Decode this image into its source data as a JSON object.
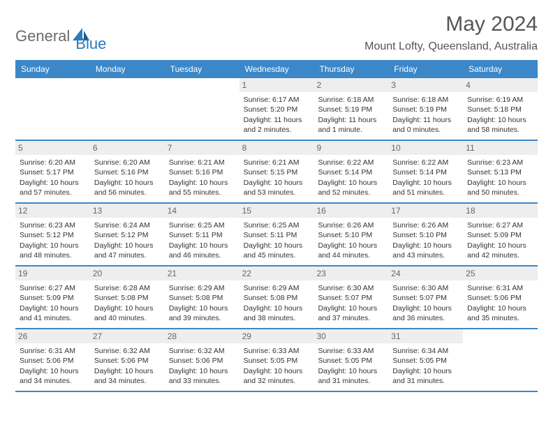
{
  "logo": {
    "part1": "General",
    "part2": "Blue"
  },
  "title": "May 2024",
  "location": "Mount Lofty, Queensland, Australia",
  "colors": {
    "header_bg": "#3b87c8",
    "header_text": "#ffffff",
    "daynum_bg": "#eeeeee",
    "border": "#3b87c8"
  },
  "day_names": [
    "Sunday",
    "Monday",
    "Tuesday",
    "Wednesday",
    "Thursday",
    "Friday",
    "Saturday"
  ],
  "weeks": [
    [
      {
        "n": "",
        "sr": "",
        "ss": "",
        "dl": ""
      },
      {
        "n": "",
        "sr": "",
        "ss": "",
        "dl": ""
      },
      {
        "n": "",
        "sr": "",
        "ss": "",
        "dl": ""
      },
      {
        "n": "1",
        "sr": "Sunrise: 6:17 AM",
        "ss": "Sunset: 5:20 PM",
        "dl": "Daylight: 11 hours and 2 minutes."
      },
      {
        "n": "2",
        "sr": "Sunrise: 6:18 AM",
        "ss": "Sunset: 5:19 PM",
        "dl": "Daylight: 11 hours and 1 minute."
      },
      {
        "n": "3",
        "sr": "Sunrise: 6:18 AM",
        "ss": "Sunset: 5:19 PM",
        "dl": "Daylight: 11 hours and 0 minutes."
      },
      {
        "n": "4",
        "sr": "Sunrise: 6:19 AM",
        "ss": "Sunset: 5:18 PM",
        "dl": "Daylight: 10 hours and 58 minutes."
      }
    ],
    [
      {
        "n": "5",
        "sr": "Sunrise: 6:20 AM",
        "ss": "Sunset: 5:17 PM",
        "dl": "Daylight: 10 hours and 57 minutes."
      },
      {
        "n": "6",
        "sr": "Sunrise: 6:20 AM",
        "ss": "Sunset: 5:16 PM",
        "dl": "Daylight: 10 hours and 56 minutes."
      },
      {
        "n": "7",
        "sr": "Sunrise: 6:21 AM",
        "ss": "Sunset: 5:16 PM",
        "dl": "Daylight: 10 hours and 55 minutes."
      },
      {
        "n": "8",
        "sr": "Sunrise: 6:21 AM",
        "ss": "Sunset: 5:15 PM",
        "dl": "Daylight: 10 hours and 53 minutes."
      },
      {
        "n": "9",
        "sr": "Sunrise: 6:22 AM",
        "ss": "Sunset: 5:14 PM",
        "dl": "Daylight: 10 hours and 52 minutes."
      },
      {
        "n": "10",
        "sr": "Sunrise: 6:22 AM",
        "ss": "Sunset: 5:14 PM",
        "dl": "Daylight: 10 hours and 51 minutes."
      },
      {
        "n": "11",
        "sr": "Sunrise: 6:23 AM",
        "ss": "Sunset: 5:13 PM",
        "dl": "Daylight: 10 hours and 50 minutes."
      }
    ],
    [
      {
        "n": "12",
        "sr": "Sunrise: 6:23 AM",
        "ss": "Sunset: 5:12 PM",
        "dl": "Daylight: 10 hours and 48 minutes."
      },
      {
        "n": "13",
        "sr": "Sunrise: 6:24 AM",
        "ss": "Sunset: 5:12 PM",
        "dl": "Daylight: 10 hours and 47 minutes."
      },
      {
        "n": "14",
        "sr": "Sunrise: 6:25 AM",
        "ss": "Sunset: 5:11 PM",
        "dl": "Daylight: 10 hours and 46 minutes."
      },
      {
        "n": "15",
        "sr": "Sunrise: 6:25 AM",
        "ss": "Sunset: 5:11 PM",
        "dl": "Daylight: 10 hours and 45 minutes."
      },
      {
        "n": "16",
        "sr": "Sunrise: 6:26 AM",
        "ss": "Sunset: 5:10 PM",
        "dl": "Daylight: 10 hours and 44 minutes."
      },
      {
        "n": "17",
        "sr": "Sunrise: 6:26 AM",
        "ss": "Sunset: 5:10 PM",
        "dl": "Daylight: 10 hours and 43 minutes."
      },
      {
        "n": "18",
        "sr": "Sunrise: 6:27 AM",
        "ss": "Sunset: 5:09 PM",
        "dl": "Daylight: 10 hours and 42 minutes."
      }
    ],
    [
      {
        "n": "19",
        "sr": "Sunrise: 6:27 AM",
        "ss": "Sunset: 5:09 PM",
        "dl": "Daylight: 10 hours and 41 minutes."
      },
      {
        "n": "20",
        "sr": "Sunrise: 6:28 AM",
        "ss": "Sunset: 5:08 PM",
        "dl": "Daylight: 10 hours and 40 minutes."
      },
      {
        "n": "21",
        "sr": "Sunrise: 6:29 AM",
        "ss": "Sunset: 5:08 PM",
        "dl": "Daylight: 10 hours and 39 minutes."
      },
      {
        "n": "22",
        "sr": "Sunrise: 6:29 AM",
        "ss": "Sunset: 5:08 PM",
        "dl": "Daylight: 10 hours and 38 minutes."
      },
      {
        "n": "23",
        "sr": "Sunrise: 6:30 AM",
        "ss": "Sunset: 5:07 PM",
        "dl": "Daylight: 10 hours and 37 minutes."
      },
      {
        "n": "24",
        "sr": "Sunrise: 6:30 AM",
        "ss": "Sunset: 5:07 PM",
        "dl": "Daylight: 10 hours and 36 minutes."
      },
      {
        "n": "25",
        "sr": "Sunrise: 6:31 AM",
        "ss": "Sunset: 5:06 PM",
        "dl": "Daylight: 10 hours and 35 minutes."
      }
    ],
    [
      {
        "n": "26",
        "sr": "Sunrise: 6:31 AM",
        "ss": "Sunset: 5:06 PM",
        "dl": "Daylight: 10 hours and 34 minutes."
      },
      {
        "n": "27",
        "sr": "Sunrise: 6:32 AM",
        "ss": "Sunset: 5:06 PM",
        "dl": "Daylight: 10 hours and 34 minutes."
      },
      {
        "n": "28",
        "sr": "Sunrise: 6:32 AM",
        "ss": "Sunset: 5:06 PM",
        "dl": "Daylight: 10 hours and 33 minutes."
      },
      {
        "n": "29",
        "sr": "Sunrise: 6:33 AM",
        "ss": "Sunset: 5:05 PM",
        "dl": "Daylight: 10 hours and 32 minutes."
      },
      {
        "n": "30",
        "sr": "Sunrise: 6:33 AM",
        "ss": "Sunset: 5:05 PM",
        "dl": "Daylight: 10 hours and 31 minutes."
      },
      {
        "n": "31",
        "sr": "Sunrise: 6:34 AM",
        "ss": "Sunset: 5:05 PM",
        "dl": "Daylight: 10 hours and 31 minutes."
      },
      {
        "n": "",
        "sr": "",
        "ss": "",
        "dl": ""
      }
    ]
  ]
}
